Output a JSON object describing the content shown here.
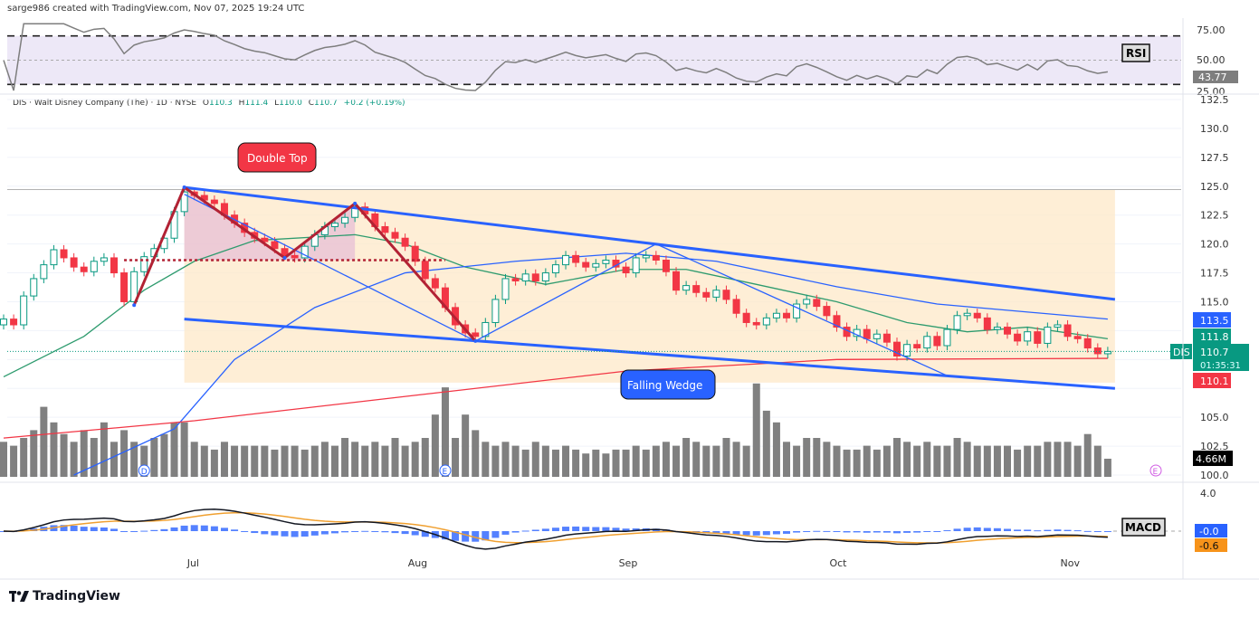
{
  "header": {
    "attribution": "sarge986 created with TradingView.com, Nov 07, 2025 19:24 UTC"
  },
  "legend": {
    "symbol_line": "DIS · Walt Disney Company (The) · 1D · NYSE",
    "open_label": "O",
    "open": "110.3",
    "high_label": "H",
    "high": "111.4",
    "low_label": "L",
    "low": "110.0",
    "close_label": "C",
    "close": "110.7",
    "change": "+0.2 (+0.19%)"
  },
  "footer": {
    "brand": "TradingView",
    "logo_icon": "tradingview-logo-icon"
  },
  "colors": {
    "up": "#089981",
    "down": "#f23645",
    "ma_fast": "#2e9b6e",
    "ma_mid": "#2962ff",
    "ma_slow": "#f23645",
    "volume": "#808080",
    "wedge": "#2962ff",
    "zone": "#fde8c8",
    "double_top": "#b22234",
    "macd": "#131722",
    "signal": "#f0a030",
    "hist": "#2962ff",
    "rsi": "#7e7e7e",
    "rsi_band": "#ede8f7"
  },
  "chart_data": {
    "type": "candlestick",
    "symbol": "DIS",
    "price_axis": {
      "ticks": [
        "132.5",
        "130.0",
        "127.5",
        "125.0",
        "122.5",
        "120.0",
        "117.5",
        "115.0",
        "105.0",
        "102.5",
        "100.0"
      ],
      "range": [
        100,
        132.5
      ]
    },
    "x_ticks": [
      {
        "label": "Jul",
        "date": "2025-07-01"
      },
      {
        "label": "Aug",
        "date": "2025-08-01"
      },
      {
        "label": "Sep",
        "date": "2025-09-02"
      },
      {
        "label": "Oct",
        "date": "2025-10-01"
      },
      {
        "label": "Nov",
        "date": "2025-11-03"
      }
    ],
    "dates": [
      "2025-06-03",
      "2025-06-04",
      "2025-06-05",
      "2025-06-06",
      "2025-06-09",
      "2025-06-10",
      "2025-06-11",
      "2025-06-12",
      "2025-06-13",
      "2025-06-16",
      "2025-06-17",
      "2025-06-18",
      "2025-06-20",
      "2025-06-23",
      "2025-06-24",
      "2025-06-25",
      "2025-06-26",
      "2025-06-27",
      "2025-06-30",
      "2025-07-01",
      "2025-07-02",
      "2025-07-03",
      "2025-07-07",
      "2025-07-08",
      "2025-07-09",
      "2025-07-10",
      "2025-07-11",
      "2025-07-14",
      "2025-07-15",
      "2025-07-16",
      "2025-07-17",
      "2025-07-18",
      "2025-07-21",
      "2025-07-22",
      "2025-07-23",
      "2025-07-24",
      "2025-07-25",
      "2025-07-28",
      "2025-07-29",
      "2025-07-30",
      "2025-07-31",
      "2025-08-01",
      "2025-08-04",
      "2025-08-05",
      "2025-08-06",
      "2025-08-07",
      "2025-08-08",
      "2025-08-11",
      "2025-08-12",
      "2025-08-13",
      "2025-08-14",
      "2025-08-15",
      "2025-08-18",
      "2025-08-19",
      "2025-08-20",
      "2025-08-21",
      "2025-08-22",
      "2025-08-25",
      "2025-08-26",
      "2025-08-27",
      "2025-08-28",
      "2025-08-29",
      "2025-09-02",
      "2025-09-03",
      "2025-09-04",
      "2025-09-05",
      "2025-09-08",
      "2025-09-09",
      "2025-09-10",
      "2025-09-11",
      "2025-09-12",
      "2025-09-15",
      "2025-09-16",
      "2025-09-17",
      "2025-09-18",
      "2025-09-19",
      "2025-09-22",
      "2025-09-23",
      "2025-09-24",
      "2025-09-25",
      "2025-09-26",
      "2025-09-29",
      "2025-09-30",
      "2025-10-01",
      "2025-10-02",
      "2025-10-03",
      "2025-10-06",
      "2025-10-07",
      "2025-10-08",
      "2025-10-09",
      "2025-10-10",
      "2025-10-13",
      "2025-10-14",
      "2025-10-15",
      "2025-10-16",
      "2025-10-17",
      "2025-10-20",
      "2025-10-21",
      "2025-10-22",
      "2025-10-23",
      "2025-10-24",
      "2025-10-27",
      "2025-10-28",
      "2025-10-29",
      "2025-10-30",
      "2025-10-31",
      "2025-11-03",
      "2025-11-04",
      "2025-11-05",
      "2025-11-06",
      "2025-11-07"
    ],
    "close": [
      113.5,
      113.0,
      115.5,
      117.0,
      118.2,
      119.5,
      118.8,
      118.0,
      117.6,
      118.5,
      118.8,
      117.5,
      115.0,
      117.6,
      118.9,
      119.6,
      120.5,
      122.8,
      124.5,
      124.2,
      123.8,
      123.5,
      122.5,
      121.8,
      121.0,
      120.5,
      120.2,
      119.6,
      119.0,
      118.8,
      119.8,
      120.8,
      121.5,
      121.8,
      122.3,
      123.2,
      122.6,
      121.5,
      121.0,
      120.5,
      119.8,
      118.5,
      117.0,
      116.2,
      114.5,
      113.0,
      112.3,
      112.0,
      113.2,
      115.2,
      117.0,
      116.8,
      117.4,
      116.8,
      117.5,
      118.2,
      119.0,
      118.4,
      118.0,
      118.3,
      118.6,
      118.0,
      117.5,
      118.8,
      119.0,
      118.6,
      117.6,
      116.0,
      116.4,
      115.8,
      115.4,
      116.0,
      115.2,
      114.0,
      113.2,
      113.0,
      113.6,
      114.0,
      113.6,
      114.8,
      115.2,
      114.6,
      113.8,
      112.8,
      112.0,
      112.6,
      111.8,
      112.2,
      111.5,
      110.3,
      111.3,
      111.0,
      112.0,
      111.2,
      112.6,
      113.8,
      114.0,
      113.6,
      112.6,
      112.8,
      112.2,
      111.6,
      112.4,
      111.4,
      112.8,
      113.0,
      112.0,
      111.8,
      111.0,
      110.5,
      110.7
    ],
    "volume_millions": [
      9,
      8,
      10,
      12,
      18,
      14,
      11,
      9,
      12,
      10,
      14,
      9,
      12,
      9,
      8,
      10,
      11,
      14,
      14,
      9,
      8,
      7,
      9,
      8,
      8,
      8,
      8,
      7,
      8,
      8,
      7,
      8,
      9,
      8,
      10,
      9,
      8,
      9,
      8,
      10,
      8,
      9,
      10,
      16,
      23,
      10,
      16,
      12,
      9,
      8,
      9,
      8,
      7,
      9,
      8,
      7,
      8,
      7,
      6,
      7,
      6,
      7,
      7,
      8,
      7,
      8,
      9,
      8,
      10,
      9,
      8,
      8,
      10,
      9,
      8,
      24,
      17,
      14,
      9,
      8,
      10,
      10,
      9,
      8,
      7,
      7,
      8,
      7,
      8,
      10,
      9,
      8,
      9,
      8,
      8,
      10,
      9,
      8,
      8,
      8,
      8,
      7,
      8,
      8,
      9,
      9,
      9,
      8,
      11,
      8,
      4.66
    ],
    "moving_averages": [
      {
        "color_key": "ma_fast",
        "last": "111.8",
        "points": [
          [
            "2025-06-03",
            108.5
          ],
          [
            "2025-06-13",
            112
          ],
          [
            "2025-06-24",
            116
          ],
          [
            "2025-07-01",
            118.5
          ],
          [
            "2025-07-10",
            120.3
          ],
          [
            "2025-07-24",
            120.8
          ],
          [
            "2025-07-31",
            120.0
          ],
          [
            "2025-08-08",
            118
          ],
          [
            "2025-08-20",
            116.5
          ],
          [
            "2025-09-02",
            117.8
          ],
          [
            "2025-09-10",
            117.8
          ],
          [
            "2025-09-19",
            116.5
          ],
          [
            "2025-10-01",
            115
          ],
          [
            "2025-10-10",
            113.2
          ],
          [
            "2025-10-20",
            112.4
          ],
          [
            "2025-10-28",
            112.8
          ],
          [
            "2025-11-07",
            111.8
          ]
        ]
      },
      {
        "color_key": "ma_mid",
        "last": "113.5",
        "points": [
          [
            "2025-06-12",
            100
          ],
          [
            "2025-06-27",
            104
          ],
          [
            "2025-07-08",
            110
          ],
          [
            "2025-07-18",
            114.5
          ],
          [
            "2025-07-31",
            117.5
          ],
          [
            "2025-08-15",
            118.5
          ],
          [
            "2025-09-02",
            119.2
          ],
          [
            "2025-09-15",
            118.5
          ],
          [
            "2025-10-01",
            116.3
          ],
          [
            "2025-10-15",
            114.8
          ],
          [
            "2025-11-07",
            113.5
          ]
        ]
      },
      {
        "color_key": "ma_slow",
        "last": "110.1",
        "points": [
          [
            "2025-06-03",
            103.2
          ],
          [
            "2025-07-01",
            104.7
          ],
          [
            "2025-08-01",
            106.9
          ],
          [
            "2025-09-02",
            109.0
          ],
          [
            "2025-10-01",
            110.0
          ],
          [
            "2025-11-07",
            110.1
          ]
        ]
      }
    ],
    "last_price": {
      "symbol": "DIS",
      "price": "110.7",
      "countdown": "01:35:31"
    },
    "volume_last": "4.66M",
    "annotations": {
      "double_top_label": "Double Top",
      "falling_wedge_label": "Falling Wedge",
      "double_top_path": [
        [
          "2025-06-23",
          114.7
        ],
        [
          "2025-06-30",
          124.9
        ],
        [
          "2025-07-15",
          118.8
        ],
        [
          "2025-07-24",
          123.5
        ],
        [
          "2025-08-11",
          111.6
        ]
      ],
      "double_top_support": [
        [
          "2025-06-20",
          118.6
        ],
        [
          "2025-08-06",
          118.6
        ]
      ],
      "wedge_upper": [
        [
          "2025-06-30",
          124.9
        ],
        [
          "2025-11-07",
          115.2
        ]
      ],
      "wedge_lower": [
        [
          "2025-06-30",
          113.5
        ],
        [
          "2025-11-07",
          107.5
        ]
      ],
      "zone": {
        "from": "2025-06-30",
        "to": "2025-11-07",
        "top": 124.7,
        "bottom": 108.0
      },
      "swing_lines": [
        [
          [
            "2025-06-30",
            124.3
          ],
          [
            "2025-08-11",
            111.6
          ]
        ],
        [
          [
            "2025-08-11",
            111.6
          ],
          [
            "2025-09-05",
            120.0
          ]
        ],
        [
          [
            "2025-09-05",
            120.0
          ],
          [
            "2025-10-16",
            108.6
          ]
        ]
      ],
      "events": [
        {
          "label": "D",
          "date": "2025-06-24"
        },
        {
          "label": "E",
          "date": "2025-08-06"
        },
        {
          "label": "E",
          "date": "future"
        }
      ]
    },
    "rsi": {
      "label": "RSI",
      "ticks": [
        "75.00",
        "50.00",
        "25.00"
      ],
      "last": "43.77",
      "upper": 70,
      "lower": 30
    },
    "macd": {
      "label": "MACD",
      "ticks": [
        "4.0"
      ],
      "macd_last": "-0.0",
      "signal_last": "-0.6"
    }
  }
}
